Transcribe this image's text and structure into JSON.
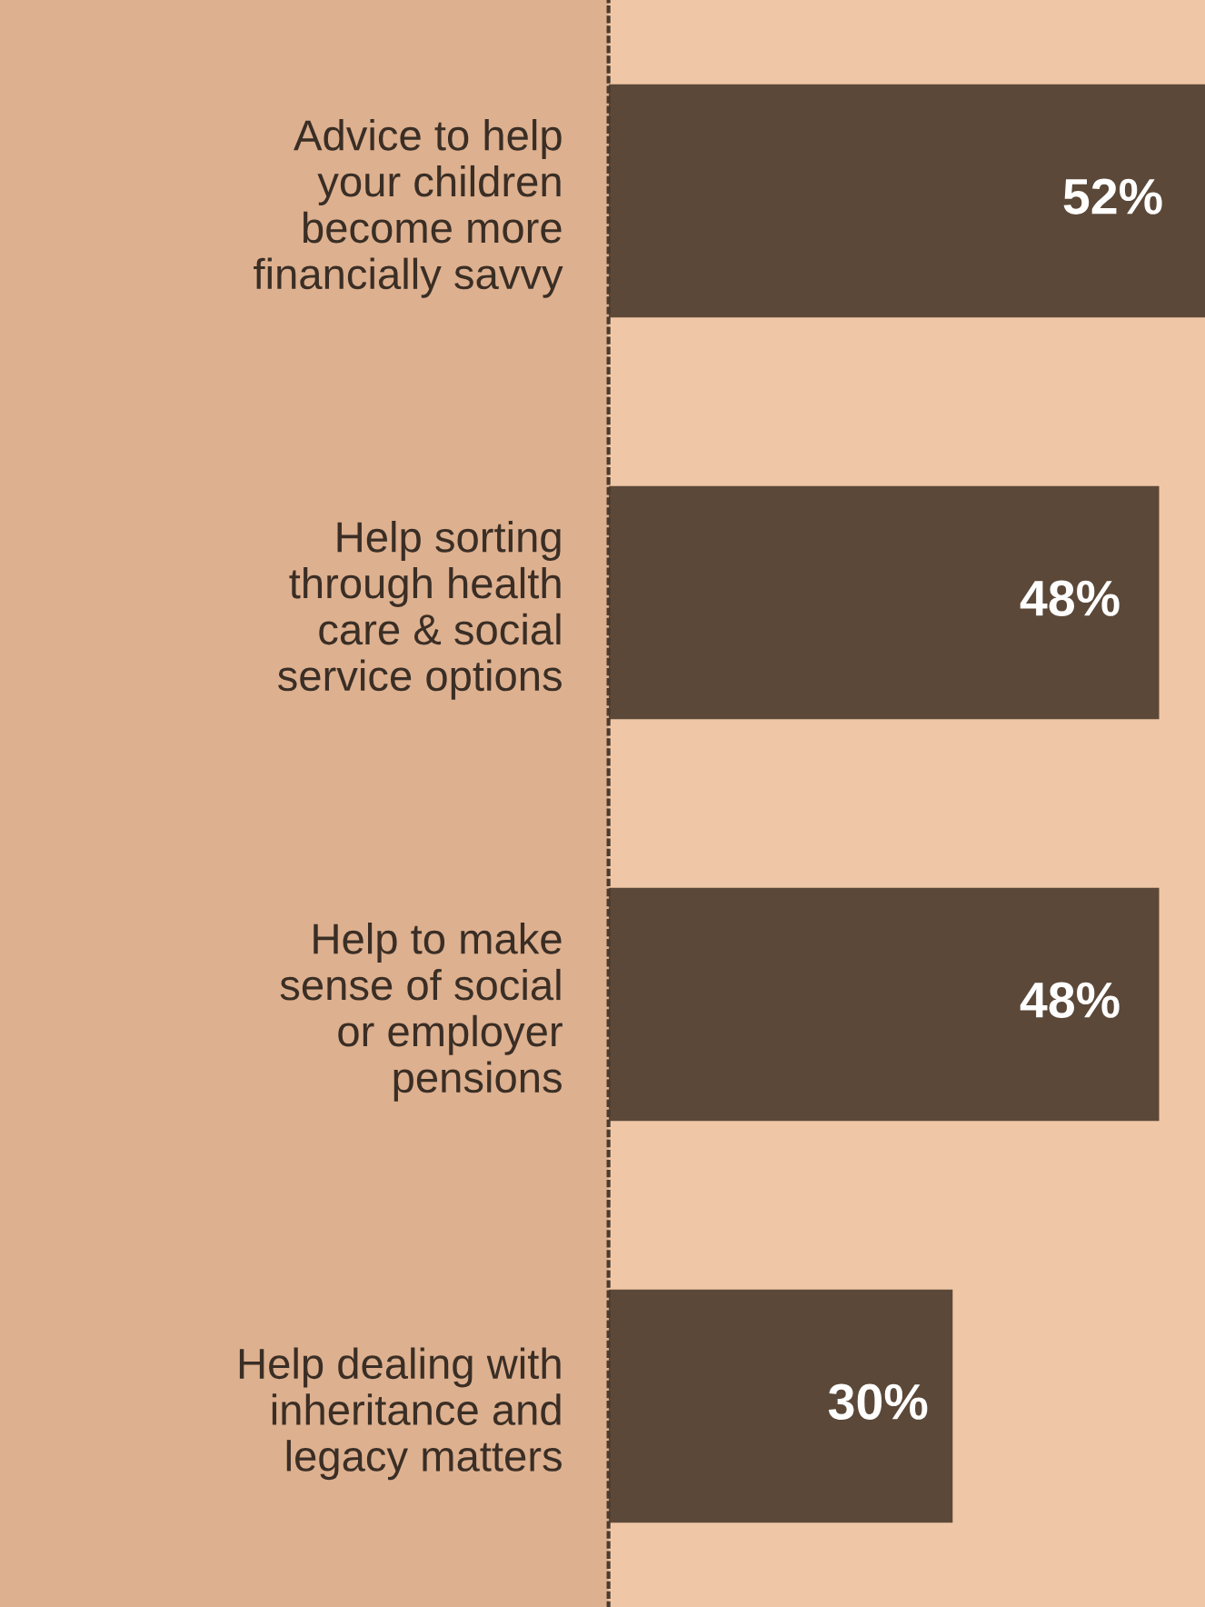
{
  "chart_data": {
    "type": "bar",
    "orientation": "horizontal",
    "categories": [
      "Advice to help\nyour children\nbecome more\nfinancially savvy",
      "Help sorting\nthrough health\ncare & social\nservice options",
      "Help to make\nsense of social\nor employer\npensions",
      "Help dealing with\ninheritance and\nlegacy matters"
    ],
    "values": [
      52,
      48,
      48,
      30
    ],
    "value_labels": [
      "52%",
      "48%",
      "48%",
      "30%"
    ],
    "color": "#5b4838",
    "xlim": [
      0,
      52
    ],
    "grid": false,
    "legend": false
  }
}
